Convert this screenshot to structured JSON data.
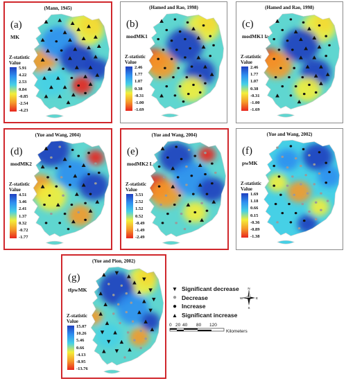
{
  "panels": [
    {
      "id": "a",
      "citation": "(Mann, 1945)",
      "letter": "(a)",
      "method": "MK",
      "zlabel": [
        "Z-statistic",
        "Value"
      ],
      "ticks": [
        "5.91",
        "4.22",
        "2.53",
        "0.84",
        "-0.85",
        "-2.54",
        "-4.23"
      ],
      "border": "red"
    },
    {
      "id": "b",
      "citation": "(Hamed and Rao, 1998)",
      "letter": "(b)",
      "method": "modMK1",
      "zlabel": [
        "Z-statistic",
        "Value"
      ],
      "ticks": [
        "2.46",
        "1.77",
        "1.07",
        "0.38",
        "-0.31",
        "-1.00",
        "-1.69"
      ],
      "border": "gray"
    },
    {
      "id": "c",
      "citation": "(Hamed and Rao, 1998)",
      "letter": "(c)",
      "method": "modMK1 lag-3",
      "zlabel": [
        "Z-statistic",
        "Value"
      ],
      "ticks": [
        "2.46",
        "1.77",
        "1.07",
        "0.38",
        "-0.31",
        "-1.00",
        "-1.69"
      ],
      "border": "gray"
    },
    {
      "id": "d",
      "citation": "(Yue and Wang, 2004)",
      "letter": "(d)",
      "method": "modMK2",
      "zlabel": [
        "Z-statistic",
        "Value"
      ],
      "ticks": [
        "4.51",
        "3.46",
        "2.41",
        "1.37",
        "0.32",
        "-0.72",
        "-1.77"
      ],
      "border": "red"
    },
    {
      "id": "e",
      "citation": "(Yue and Wang, 2004)",
      "letter": "(e)",
      "method": "modMK2 Lag-1",
      "zlabel": [
        "Z-statistic",
        "Value"
      ],
      "ticks": [
        "3.53",
        "2.52",
        "1.52",
        "0.52",
        "-0.49",
        "-1.49",
        "-2.49"
      ],
      "border": "red"
    },
    {
      "id": "f",
      "citation": "(Yue and Wang, 2002)",
      "letter": "(f)",
      "method": "pwMK",
      "zlabel": [
        "Z-statistic",
        "Value"
      ],
      "ticks": [
        "1.69",
        "1.18",
        "0.66",
        "0.15",
        "-0.36",
        "-0.89",
        "-1.38"
      ],
      "border": "gray"
    },
    {
      "id": "g",
      "citation": "(Yue and Pion, 2002)",
      "letter": "(g)",
      "method": "tfpwMK",
      "zlabel": [
        "Z-statistic",
        "Value"
      ],
      "ticks": [
        "15.07",
        "10.26",
        "5.46",
        "0.66",
        "-4.13",
        "-8.95",
        "-13.76"
      ],
      "border": "red"
    }
  ],
  "legend": {
    "items": [
      {
        "symbol": "triangle-down",
        "label": "Significant decrease"
      },
      {
        "symbol": "dot-gray",
        "label": "Decrease"
      },
      {
        "symbol": "dot-black",
        "label": "Increase"
      },
      {
        "symbol": "triangle-up",
        "label": "Significant increase"
      }
    ]
  },
  "scale_bar": {
    "ticks": [
      "0",
      "20",
      "40",
      "80",
      "120"
    ],
    "unit": "Kilometers"
  },
  "compass": {
    "n": "N",
    "s": "S",
    "e": "E",
    "w": "W"
  },
  "colors": {
    "ramp": [
      "#1f3fbf",
      "#2f8ff0",
      "#46d0e6",
      "#f3ee3a",
      "#f59a2a",
      "#e8251e"
    ],
    "panel_red": "#d0262b"
  }
}
